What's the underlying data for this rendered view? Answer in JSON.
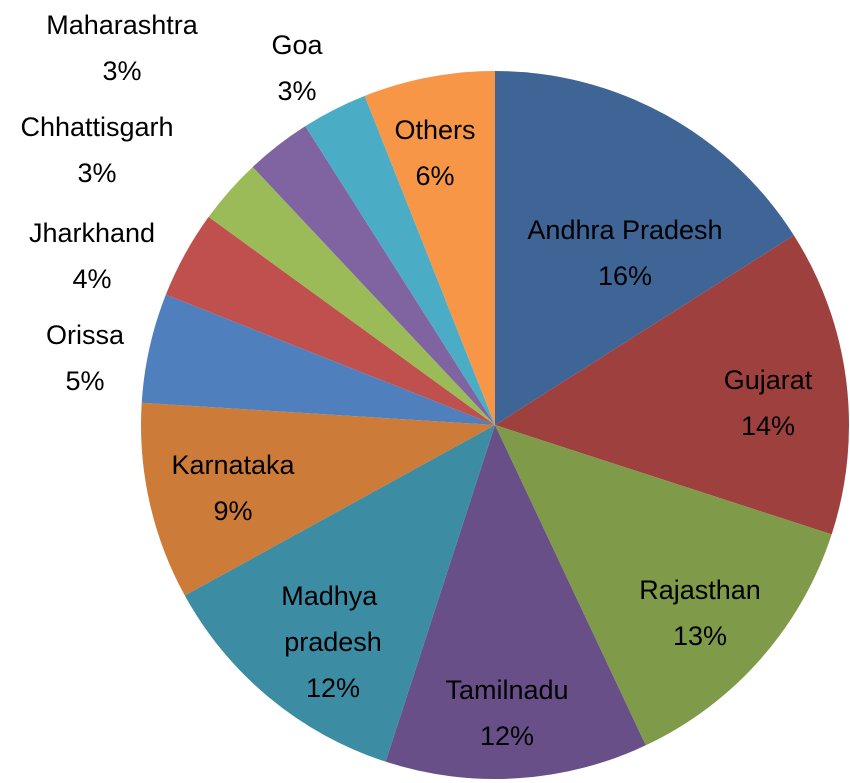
{
  "chart_data": {
    "type": "pie",
    "categories": [
      "Andhra Pradesh",
      "Gujarat",
      "Rajasthan",
      "Tamilnadu",
      "Madhya pradesh",
      "Karnataka",
      "Orissa",
      "Jharkhand",
      "Chhattisgarh",
      "Maharashtra",
      "Goa",
      "Others"
    ],
    "values": [
      16,
      14,
      13,
      12,
      12,
      9,
      5,
      4,
      3,
      3,
      3,
      6
    ],
    "value_labels": [
      "16%",
      "14%",
      "13%",
      "12%",
      "12%",
      "9%",
      "5%",
      "4%",
      "3%",
      "3%",
      "3%",
      "6%"
    ],
    "colors": [
      "#3f6496",
      "#9e413e",
      "#7f9a48",
      "#684f88",
      "#3c8ca3",
      "#cc7b38",
      "#4f80bd",
      "#c0504d",
      "#9bbb59",
      "#8064a2",
      "#4bacc6",
      "#f79646"
    ]
  }
}
